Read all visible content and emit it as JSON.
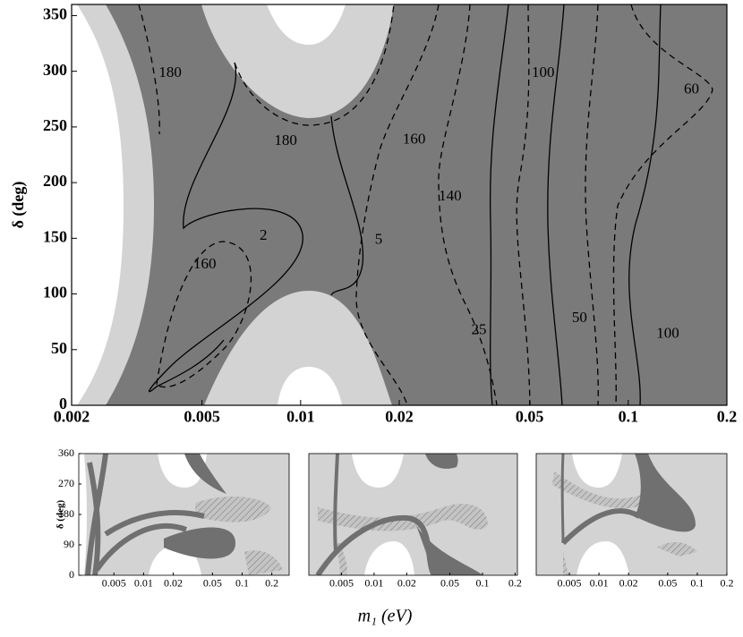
{
  "chart_data": [
    {
      "type": "contour",
      "y_label": "δ (deg)",
      "xscale": "log",
      "xlim": [
        0.002,
        0.2
      ],
      "ylim": [
        0,
        360
      ],
      "xticks": [
        0.002,
        0.005,
        0.01,
        0.02,
        0.05,
        0.1,
        0.2
      ],
      "yticks": [
        0,
        50,
        100,
        150,
        200,
        250,
        300,
        350
      ],
      "contour_labels": [
        {
          "value": 180,
          "x": 0.004,
          "y": 298
        },
        {
          "value": 180,
          "x": 0.009,
          "y": 237
        },
        {
          "value": 160,
          "x": 0.0222,
          "y": 238
        },
        {
          "value": 140,
          "x": 0.0286,
          "y": 187
        },
        {
          "value": 2,
          "x": 0.0077,
          "y": 152
        },
        {
          "value": 5,
          "x": 0.0173,
          "y": 148
        },
        {
          "value": 160,
          "x": 0.0051,
          "y": 126
        },
        {
          "value": 25,
          "x": 0.035,
          "y": 67
        },
        {
          "value": 50,
          "x": 0.071,
          "y": 78
        },
        {
          "value": 100,
          "x": 0.132,
          "y": 64
        },
        {
          "value": 100,
          "x": 0.055,
          "y": 298
        },
        {
          "value": 60,
          "x": 0.156,
          "y": 283
        }
      ]
    },
    {
      "type": "region",
      "y_label": "δ (deg)",
      "xscale": "log",
      "xlim": [
        0.0022,
        0.3
      ],
      "ylim": [
        0,
        360
      ],
      "xticks": [
        0.005,
        0.01,
        0.02,
        0.05,
        0.1,
        0.2
      ],
      "yticks": [
        0,
        90,
        180,
        270,
        360
      ]
    },
    {
      "type": "region",
      "xscale": "log",
      "xlim": [
        0.0025,
        0.21
      ],
      "ylim": [
        0,
        360
      ],
      "xticks": [
        0.005,
        0.01,
        0.02,
        0.05,
        0.1,
        0.2
      ]
    },
    {
      "type": "region",
      "xscale": "log",
      "xlim": [
        0.0023,
        0.2
      ],
      "ylim": [
        0,
        360
      ],
      "xticks": [
        0.005,
        0.01,
        0.02,
        0.05,
        0.1,
        0.2
      ]
    }
  ],
  "x_label": "m₁ (eV)"
}
